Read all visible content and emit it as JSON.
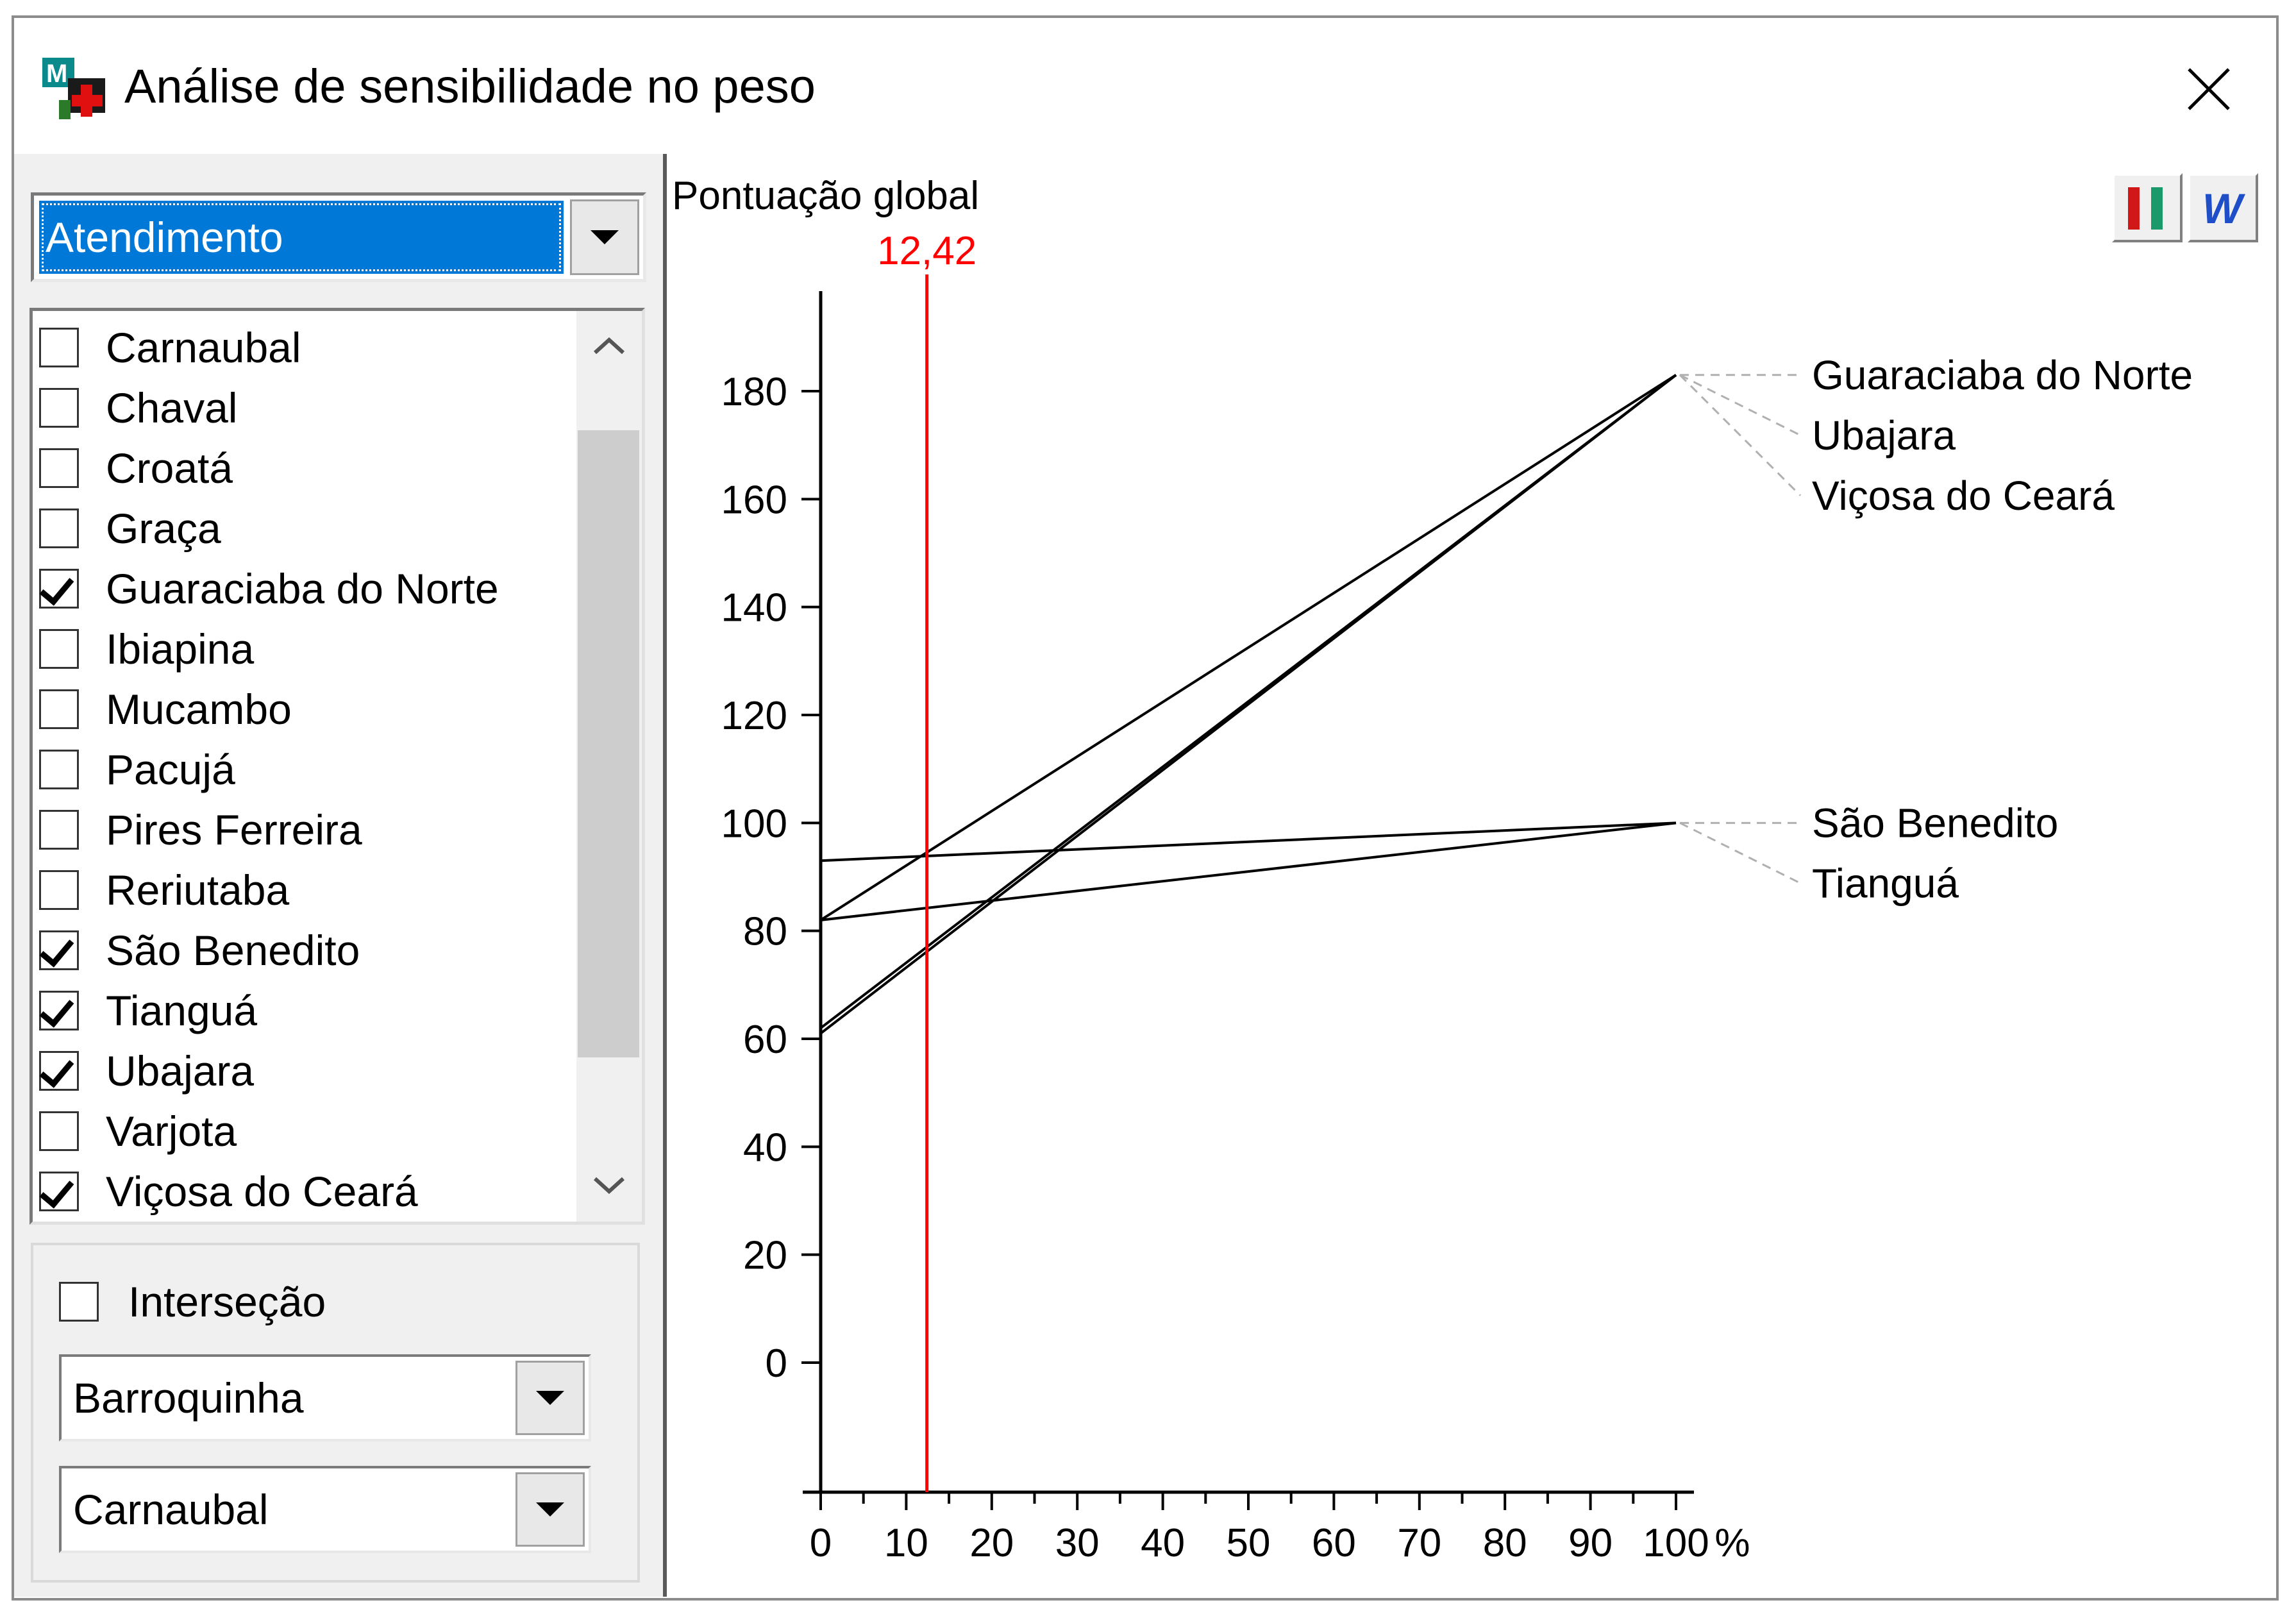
{
  "window": {
    "title": "Análise de sensibilidade no peso",
    "close_icon": "close-icon",
    "app_icon": "macbeth-app-icon"
  },
  "criterion_select": {
    "value": "Atendimento"
  },
  "alternatives_list": {
    "items": [
      {
        "label": "Carnaubal",
        "checked": false
      },
      {
        "label": "Chaval",
        "checked": false
      },
      {
        "label": "Croatá",
        "checked": false
      },
      {
        "label": "Graça",
        "checked": false
      },
      {
        "label": "Guaraciaba do Norte",
        "checked": true
      },
      {
        "label": "Ibiapina",
        "checked": false
      },
      {
        "label": "Mucambo",
        "checked": false
      },
      {
        "label": "Pacujá",
        "checked": false
      },
      {
        "label": "Pires Ferreira",
        "checked": false
      },
      {
        "label": "Reriutaba",
        "checked": false
      },
      {
        "label": "São Benedito",
        "checked": true
      },
      {
        "label": "Tianguá",
        "checked": true
      },
      {
        "label": "Ubajara",
        "checked": true
      },
      {
        "label": "Varjota",
        "checked": false
      },
      {
        "label": "Viçosa do Ceará",
        "checked": true
      }
    ]
  },
  "intersection": {
    "label": "Interseção",
    "checked": false,
    "select_a": "Barroquinha",
    "select_b": "Carnaubal"
  },
  "toolbar": {
    "chart_icon": "bar-chart-icon",
    "word_icon": "word-export-icon"
  },
  "chart_data": {
    "type": "line",
    "ylabel": "Pontuação global",
    "xunit": "%",
    "xlim": [
      0,
      100
    ],
    "ylim": [
      0,
      180
    ],
    "xticks": [
      "0",
      "10",
      "20",
      "30",
      "40",
      "50",
      "60",
      "70",
      "80",
      "90",
      "100"
    ],
    "yticks": [
      "0",
      "20",
      "40",
      "60",
      "80",
      "100",
      "120",
      "140",
      "160",
      "180"
    ],
    "current_weight": {
      "value": 12.42,
      "label": "12,42",
      "color": "#ff0000"
    },
    "series": [
      {
        "name": "Guaraciaba do Norte",
        "x": [
          0,
          100
        ],
        "y": [
          82,
          183
        ]
      },
      {
        "name": "Ubajara",
        "x": [
          0,
          100
        ],
        "y": [
          62,
          183
        ]
      },
      {
        "name": "Viçosa do Ceará",
        "x": [
          0,
          100
        ],
        "y": [
          61,
          183
        ]
      },
      {
        "name": "São Benedito",
        "x": [
          0,
          100
        ],
        "y": [
          93,
          100
        ]
      },
      {
        "name": "Tianguá",
        "x": [
          0,
          100
        ],
        "y": [
          82,
          100
        ]
      }
    ],
    "legend_groups": [
      {
        "names": [
          "Guaraciaba do Norte",
          "Ubajara",
          "Viçosa do Ceará"
        ],
        "y": 183
      },
      {
        "names": [
          "São Benedito",
          "Tianguá"
        ],
        "y": 100
      }
    ]
  }
}
